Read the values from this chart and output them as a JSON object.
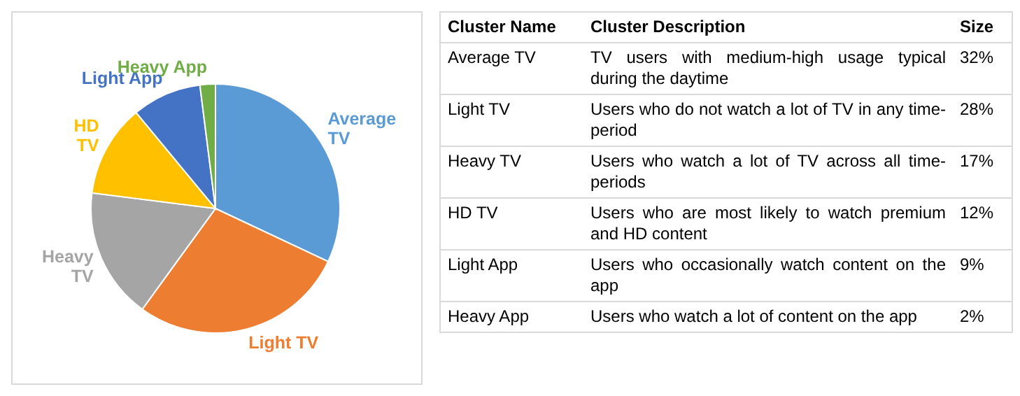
{
  "chart_data": [
    {
      "type": "pie",
      "categories": [
        "Average TV",
        "Light TV",
        "Heavy TV",
        "HD TV",
        "Light App",
        "Heavy App"
      ],
      "values": [
        32,
        28,
        17,
        12,
        9,
        2
      ],
      "colors": [
        "#5b9bd5",
        "#ed7d31",
        "#a5a5a5",
        "#ffc000",
        "#4472c4",
        "#70ad47"
      ],
      "legend": false
    },
    {
      "type": "other",
      "annotations": [
        "Cluster Name",
        "Cluster Description",
        "Size",
        "Average TV",
        "TV users with medium-high usage typical during the daytime",
        "32%",
        "Light TV",
        "Users who do not watch a lot of TV in any time-period",
        "28%",
        "Heavy TV",
        "Users who watch a lot of TV across all time-periods",
        "17%",
        "HD TV",
        "Users who are most likely to watch premium and HD content",
        "12%",
        "Light App",
        "Users who occasionally watch content on the app",
        "9%",
        "Heavy App",
        "Users who watch a lot of content on the app",
        "2%"
      ]
    }
  ]
}
